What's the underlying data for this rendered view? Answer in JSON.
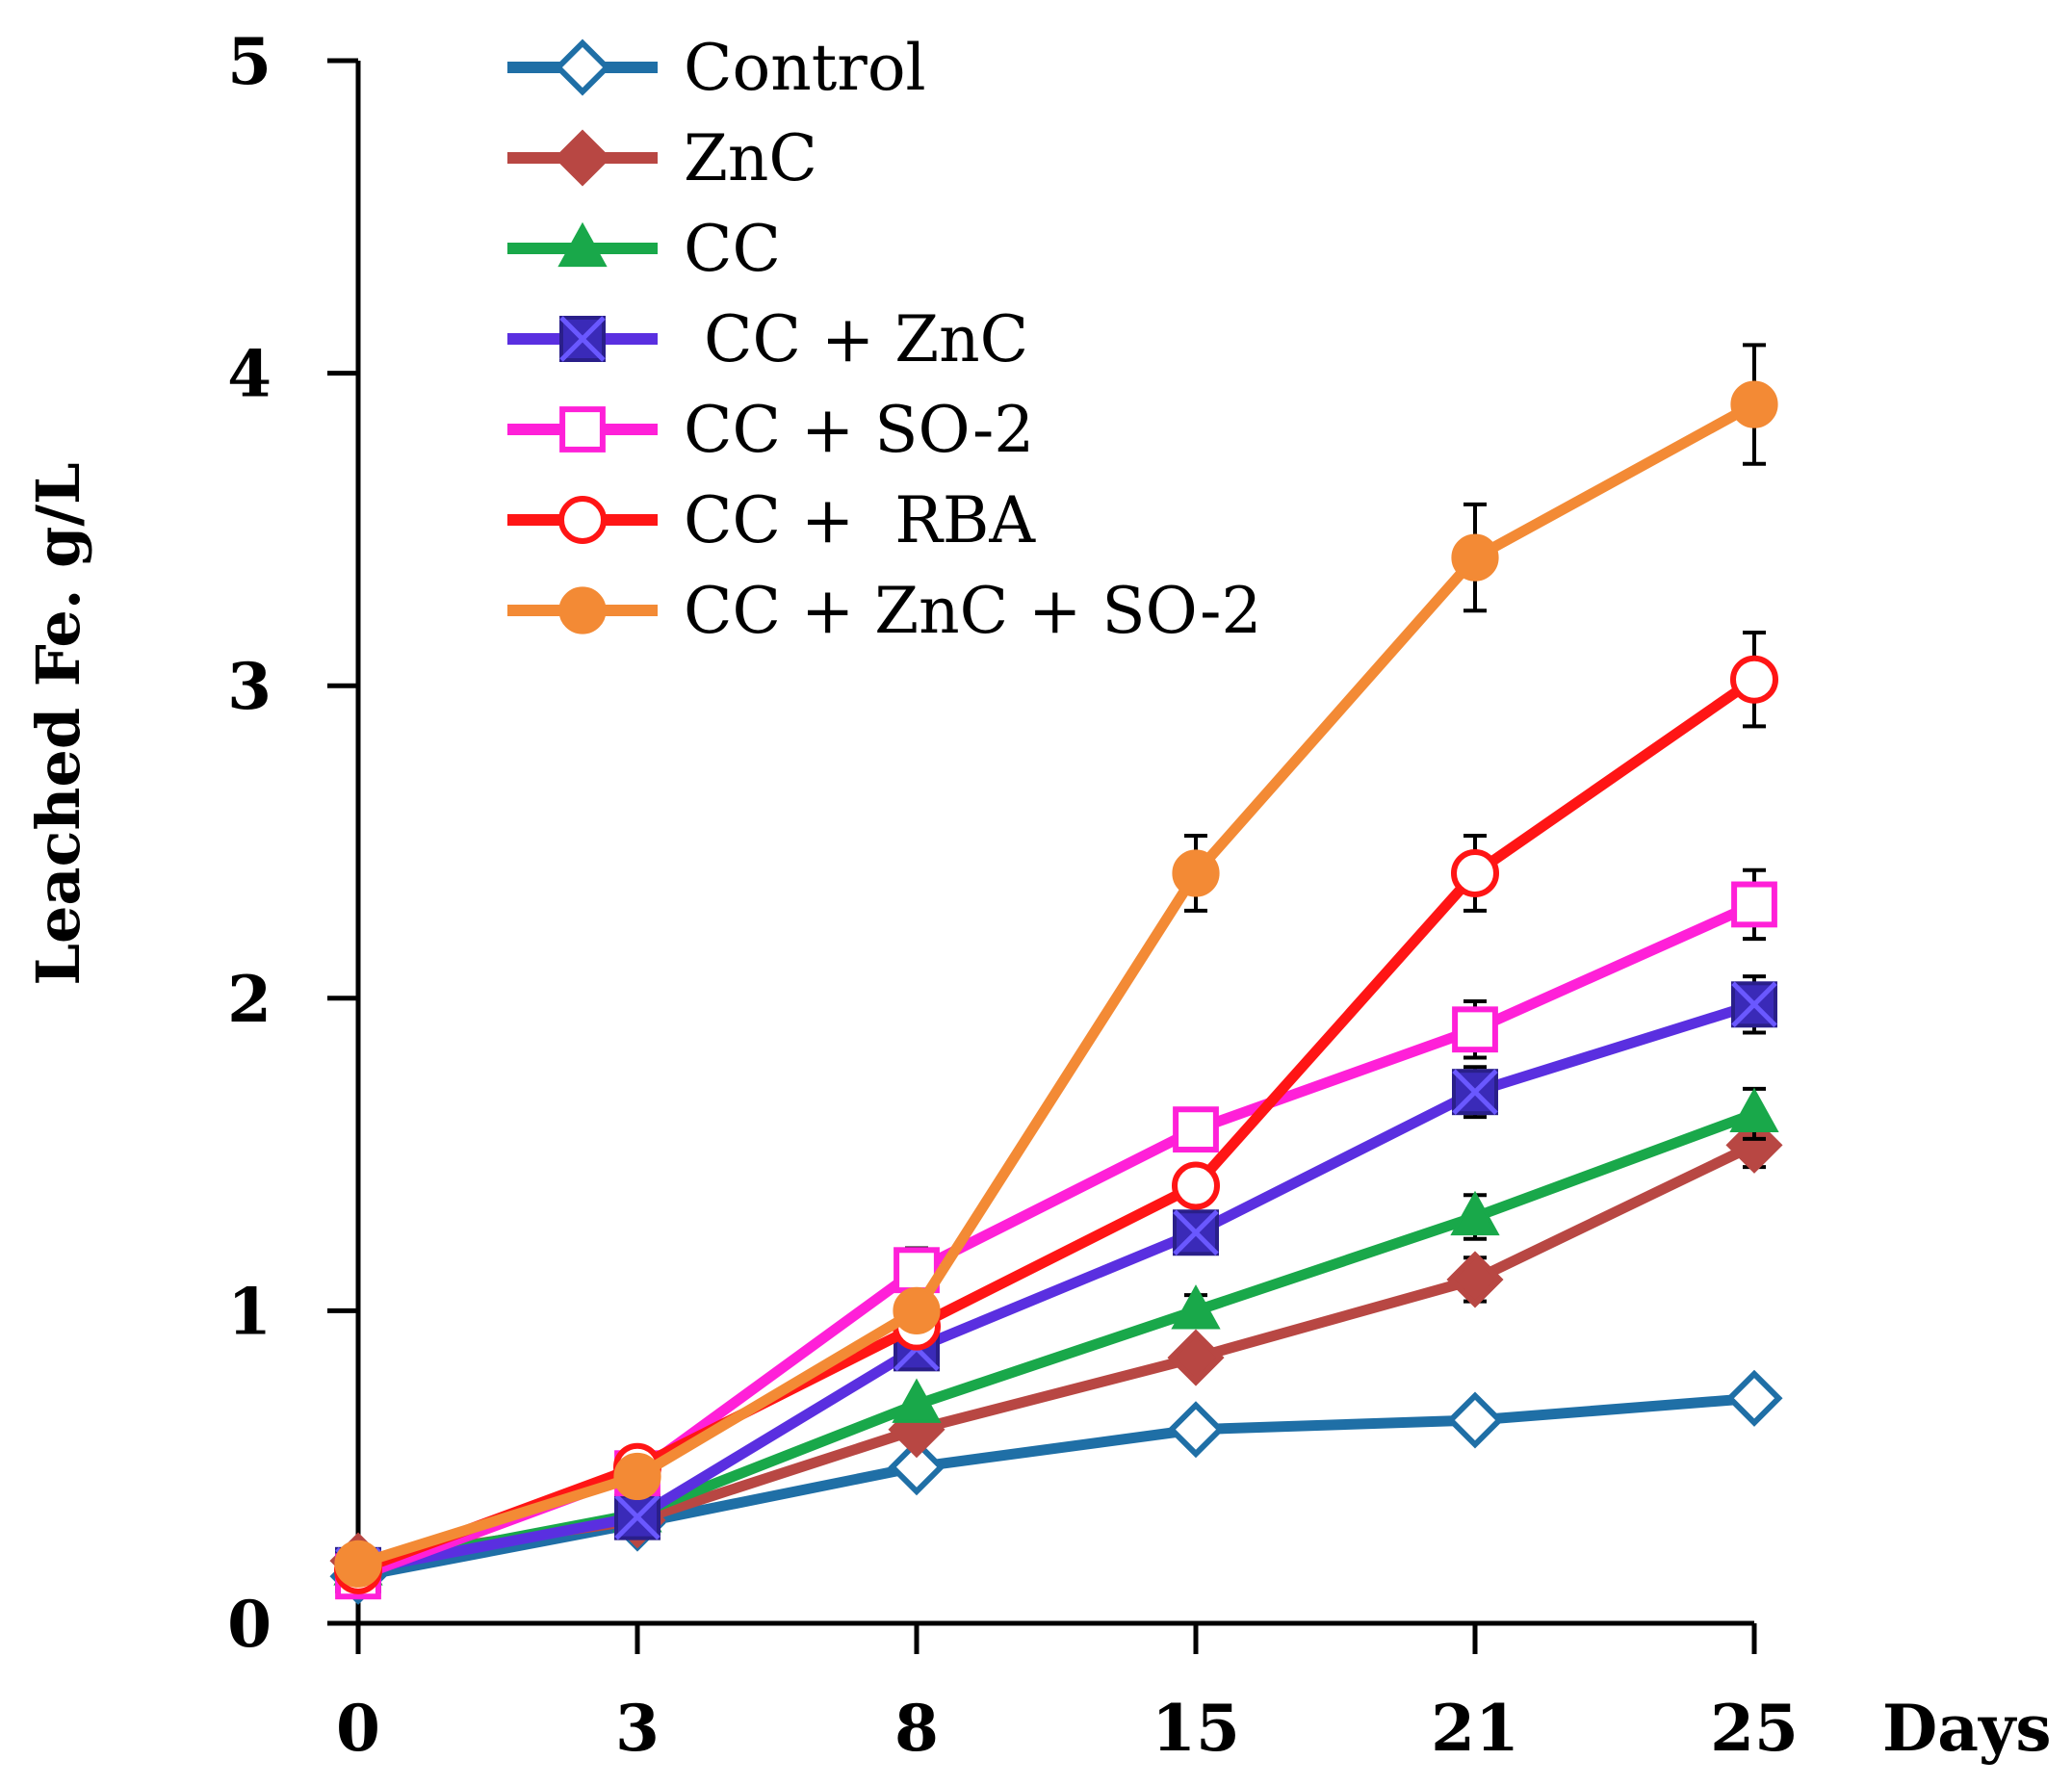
{
  "chart_data": {
    "type": "line",
    "title": "",
    "ylabel": "Leached Fe. g/L",
    "xlabel": "Days",
    "categories": [
      "0",
      "3",
      "8",
      "15",
      "21",
      "25"
    ],
    "ylim": [
      0,
      5
    ],
    "yticks": [
      "0",
      "1",
      "2",
      "3",
      "4",
      "5"
    ],
    "grid": false,
    "legend": "top-left",
    "error_bars": true,
    "series": [
      {
        "name": "Control",
        "color": "#1f6fa6",
        "marker": "diamond-open",
        "values": [
          0.15,
          0.32,
          0.5,
          0.62,
          0.65,
          0.72
        ],
        "errors": [
          0,
          0,
          0,
          0,
          0,
          0
        ]
      },
      {
        "name": "ZnC",
        "color": "#b84743",
        "marker": "diamond-filled",
        "values": [
          0.2,
          0.33,
          0.62,
          0.85,
          1.1,
          1.53
        ],
        "errors": [
          0,
          0,
          0,
          0,
          0.07,
          0.07
        ]
      },
      {
        "name": "CC",
        "color": "#19a84a",
        "marker": "triangle-filled",
        "values": [
          0.18,
          0.35,
          0.7,
          1.0,
          1.3,
          1.63
        ],
        "errors": [
          0,
          0,
          0,
          0.05,
          0.07,
          0.08
        ]
      },
      {
        "name": " CC + ZnC",
        "color": "#5a2fe0",
        "marker": "square-x",
        "values": [
          0.17,
          0.34,
          0.88,
          1.25,
          1.7,
          1.98
        ],
        "errors": [
          0,
          0,
          0,
          0,
          0.08,
          0.09
        ]
      },
      {
        "name": "CC + SO-2",
        "color": "#ff20d8",
        "marker": "square-open",
        "values": [
          0.15,
          0.48,
          1.13,
          1.58,
          1.9,
          2.3
        ],
        "errors": [
          0,
          0,
          0.07,
          0.06,
          0.09,
          0.11
        ]
      },
      {
        "name": "CC +  RBA",
        "color": "#ff1515",
        "marker": "circle-open",
        "values": [
          0.17,
          0.5,
          0.95,
          1.4,
          2.4,
          3.02
        ],
        "errors": [
          0,
          0,
          0,
          0,
          0.12,
          0.15
        ]
      },
      {
        "name": "CC + ZnC + SO-2",
        "color": "#f38a35",
        "marker": "circle-filled",
        "values": [
          0.19,
          0.47,
          1.0,
          2.4,
          3.41,
          3.9
        ],
        "errors": [
          0,
          0,
          0,
          0.12,
          0.17,
          0.19
        ]
      }
    ]
  }
}
